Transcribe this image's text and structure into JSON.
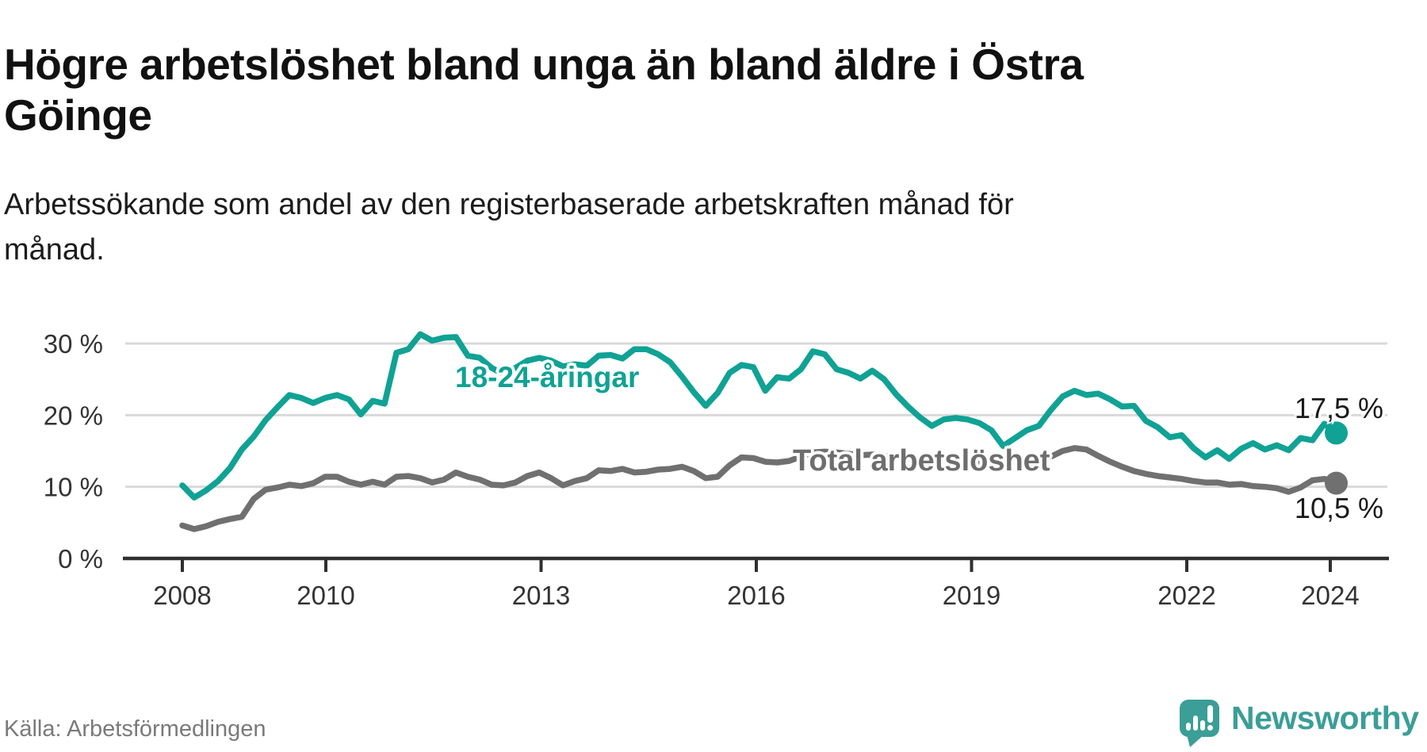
{
  "header": {
    "title": "Högre arbetslöshet bland unga än bland äldre i Östra\nGöinge",
    "subtitle": "Arbetssökande som andel av den registerbaserade arbetskraften månad för\nmånad."
  },
  "footer": {
    "source": "Källa: Arbetsförmedlingen",
    "brand": "Newsworthy"
  },
  "colors": {
    "youth_line": "#10a294",
    "total_line": "#707070",
    "total_label": "#6e6e6e",
    "gridline": "#d9d9d9",
    "axis": "#2f2f2f",
    "tick_text": "#333333",
    "end_label_text": "#1a1a1a",
    "logo_teal": "#3b9e97",
    "background": "#ffffff"
  },
  "chart_data": {
    "type": "line",
    "unit": "%",
    "x_start": "2008-01",
    "x_end": "2024-02",
    "step_months": 2,
    "grid": "horizontal",
    "x_axis": {
      "tick_years": [
        2008,
        2010,
        2013,
        2016,
        2019,
        2022,
        2024
      ],
      "tick_labels": [
        "2008",
        "2010",
        "2013",
        "2016",
        "2019",
        "2022",
        "2024"
      ]
    },
    "y_axis": {
      "tick_values": [
        0,
        10,
        20,
        30
      ],
      "tick_labels": [
        "0 %",
        "10 %",
        "20 %",
        "30 %"
      ],
      "range": [
        0,
        32
      ]
    },
    "series": [
      {
        "name": "18-24-åringar",
        "color": "#10a294",
        "end_label": "17,5 %",
        "end_value": 17.5,
        "values": [
          10.2,
          8.5,
          9.5,
          10.8,
          12.6,
          15.2,
          17.0,
          19.3,
          21.1,
          22.8,
          22.4,
          21.7,
          22.4,
          22.8,
          22.2,
          20.1,
          22.0,
          21.6,
          28.7,
          29.2,
          31.3,
          30.4,
          30.8,
          30.9,
          28.3,
          28.0,
          26.6,
          25.7,
          26.6,
          27.6,
          28.0,
          27.6,
          26.8,
          27.1,
          26.9,
          28.3,
          28.4,
          27.9,
          29.2,
          29.2,
          28.5,
          27.4,
          25.4,
          23.2,
          21.3,
          23.1,
          25.9,
          27.0,
          26.7,
          23.4,
          25.3,
          25.1,
          26.4,
          28.9,
          28.5,
          26.4,
          25.9,
          25.1,
          26.2,
          25.0,
          22.9,
          21.2,
          19.7,
          18.5,
          19.4,
          19.6,
          19.4,
          18.9,
          17.9,
          15.7,
          16.8,
          17.9,
          18.5,
          20.7,
          22.6,
          23.4,
          22.8,
          23.0,
          22.2,
          21.2,
          21.3,
          19.2,
          18.3,
          16.9,
          17.2,
          15.4,
          14.1,
          15.1,
          13.9,
          15.3,
          16.1,
          15.2,
          15.8,
          15.1,
          16.8,
          16.5,
          18.8,
          17.5
        ]
      },
      {
        "name": "Total arbetslöshet",
        "color": "#707070",
        "end_label": "10,5 %",
        "end_value": 10.5,
        "values": [
          4.6,
          4.1,
          4.5,
          5.1,
          5.5,
          5.8,
          8.3,
          9.6,
          9.9,
          10.3,
          10.1,
          10.5,
          11.4,
          11.4,
          10.7,
          10.3,
          10.7,
          10.3,
          11.4,
          11.5,
          11.2,
          10.6,
          11.0,
          12.0,
          11.4,
          11.0,
          10.3,
          10.2,
          10.6,
          11.5,
          12.0,
          11.2,
          10.2,
          10.8,
          11.2,
          12.3,
          12.2,
          12.5,
          12.0,
          12.1,
          12.4,
          12.5,
          12.8,
          12.2,
          11.2,
          11.4,
          13.0,
          14.1,
          14.0,
          13.5,
          13.4,
          13.6,
          14.2,
          14.8,
          14.9,
          14.8,
          14.6,
          14.4,
          14.5,
          14.3,
          14.1,
          13.9,
          13.7,
          13.5,
          13.6,
          13.7,
          13.6,
          13.4,
          13.3,
          13.2,
          13.4,
          13.6,
          13.8,
          14.2,
          15.0,
          15.4,
          15.2,
          14.3,
          13.5,
          12.8,
          12.2,
          11.8,
          11.5,
          11.3,
          11.1,
          10.8,
          10.6,
          10.6,
          10.3,
          10.4,
          10.1,
          10.0,
          9.8,
          9.3,
          9.9,
          10.9,
          11.1,
          10.5
        ]
      }
    ]
  }
}
